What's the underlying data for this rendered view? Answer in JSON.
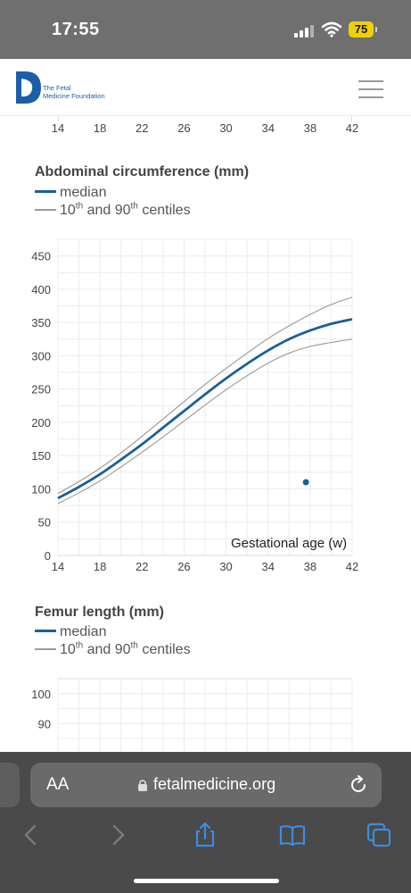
{
  "status_bar": {
    "time": "17:55",
    "battery": "75",
    "icons": [
      "signal-icon",
      "wifi-icon",
      "battery-icon"
    ]
  },
  "header": {
    "logo_line1": "The Fetal",
    "logo_line2": "Medicine Foundation",
    "icons": [
      "logo-icon",
      "menu-icon"
    ],
    "brand_color": "#1a5fa8"
  },
  "top_axis": {
    "ticks": [
      "14",
      "18",
      "22",
      "26",
      "30",
      "34",
      "38",
      "42"
    ]
  },
  "abdominal": {
    "title": "Abdominal circumference (mm)",
    "legend_median": "median",
    "legend_centile_a": "10",
    "legend_centile_sup_a": "th",
    "legend_centile_b": " and 90",
    "legend_centile_sup_b": "th",
    "legend_centile_c": " centiles",
    "x_axis_title": "Gestational age (w)"
  },
  "femur": {
    "title": "Femur length (mm)",
    "legend_median": "median",
    "legend_centile_a": "10",
    "legend_centile_sup_a": "th",
    "legend_centile_b": " and 90",
    "legend_centile_sup_b": "th",
    "legend_centile_c": " centiles",
    "y_ticks": [
      "100",
      "90"
    ]
  },
  "browser": {
    "aa_label": "AA",
    "url": "fetalmedicine.org",
    "icons": [
      "lock-icon",
      "reload-icon",
      "back-icon",
      "forward-icon",
      "share-icon",
      "bookmarks-icon",
      "tabs-icon"
    ]
  },
  "chart_data": [
    {
      "type": "line",
      "title": "Abdominal circumference (mm)",
      "xlabel": "Gestational age (w)",
      "ylabel": "",
      "xlim": [
        14,
        42
      ],
      "ylim": [
        0,
        475
      ],
      "x_ticks": [
        14,
        18,
        22,
        26,
        30,
        34,
        38,
        42
      ],
      "y_ticks": [
        0,
        50,
        100,
        150,
        200,
        250,
        300,
        350,
        400,
        450
      ],
      "grid": true,
      "series": [
        {
          "name": "median",
          "color": "#1a5f97",
          "x": [
            14,
            16,
            18,
            20,
            22,
            24,
            26,
            28,
            30,
            32,
            34,
            36,
            38,
            40,
            42
          ],
          "y": [
            86,
            103,
            122,
            144,
            167,
            192,
            217,
            242,
            266,
            288,
            308,
            325,
            338,
            348,
            355
          ]
        },
        {
          "name": "90th centile",
          "color": "#999999",
          "x": [
            14,
            16,
            18,
            20,
            22,
            24,
            26,
            28,
            30,
            32,
            34,
            36,
            38,
            40,
            42
          ],
          "y": [
            93,
            111,
            131,
            154,
            179,
            205,
            231,
            257,
            281,
            304,
            326,
            345,
            362,
            377,
            388
          ]
        },
        {
          "name": "10th centile",
          "color": "#999999",
          "x": [
            14,
            16,
            18,
            20,
            22,
            24,
            26,
            28,
            30,
            32,
            34,
            36,
            38,
            40,
            42
          ],
          "y": [
            78,
            94,
            112,
            133,
            155,
            178,
            202,
            226,
            249,
            270,
            289,
            304,
            314,
            320,
            325
          ]
        }
      ],
      "points": [
        {
          "x": 37.6,
          "y": 110,
          "color": "#1a5f97"
        }
      ]
    },
    {
      "type": "line",
      "title": "Femur length (mm)",
      "xlim": [
        14,
        42
      ],
      "y_ticks_visible": [
        100,
        90
      ],
      "grid": true,
      "series": []
    }
  ]
}
